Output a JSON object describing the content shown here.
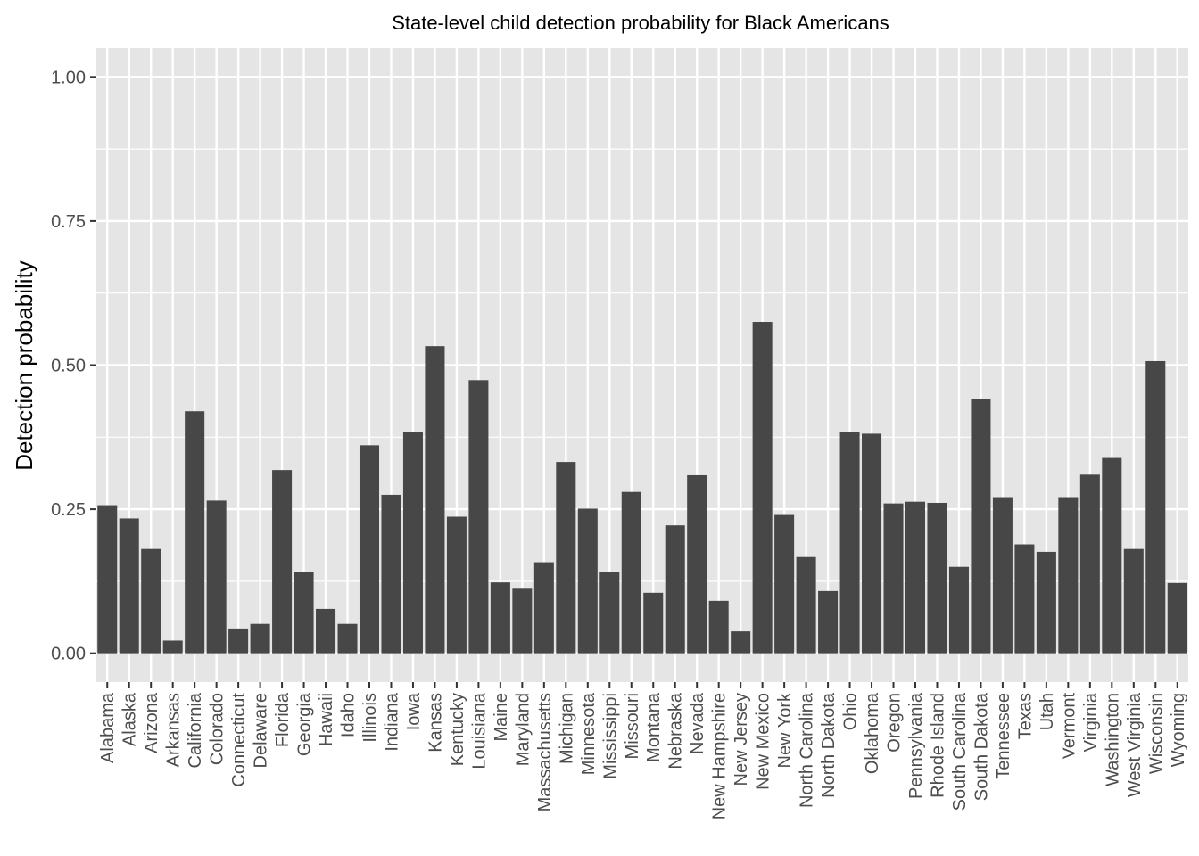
{
  "chart_data": {
    "type": "bar",
    "title": "State-level child detection probability for Black Americans",
    "xlabel": "",
    "ylabel": "Detection probability",
    "ylim": [
      -0.05,
      1.05
    ],
    "yticks": [
      0,
      0.25,
      0.5,
      0.75,
      1.0
    ],
    "ytick_labels": [
      "0.00",
      "0.25",
      "0.50",
      "0.75",
      "1.00"
    ],
    "grid": true,
    "legend": "none",
    "colors": {
      "panel": "#e5e5e5",
      "grid": "#ffffff",
      "bar": "#474747",
      "tick": "#4d4d4d",
      "text": "#000000"
    },
    "categories": [
      "Alabama",
      "Alaska",
      "Arizona",
      "Arkansas",
      "California",
      "Colorado",
      "Connecticut",
      "Delaware",
      "Florida",
      "Georgia",
      "Hawaii",
      "Idaho",
      "Illinois",
      "Indiana",
      "Iowa",
      "Kansas",
      "Kentucky",
      "Louisiana",
      "Maine",
      "Maryland",
      "Massachusetts",
      "Michigan",
      "Minnesota",
      "Mississippi",
      "Missouri",
      "Montana",
      "Nebraska",
      "Nevada",
      "New Hampshire",
      "New Jersey",
      "New Mexico",
      "New York",
      "North Carolina",
      "North Dakota",
      "Ohio",
      "Oklahoma",
      "Oregon",
      "Pennsylvania",
      "Rhode Island",
      "South Carolina",
      "South Dakota",
      "Tennessee",
      "Texas",
      "Utah",
      "Vermont",
      "Virginia",
      "Washington",
      "West Virginia",
      "Wisconsin",
      "Wyoming"
    ],
    "values": [
      0.257,
      0.234,
      0.181,
      0.022,
      0.42,
      0.265,
      0.043,
      0.051,
      0.318,
      0.141,
      0.077,
      0.051,
      0.361,
      0.275,
      0.384,
      0.533,
      0.237,
      0.474,
      0.123,
      0.112,
      0.158,
      0.332,
      0.251,
      0.141,
      0.28,
      0.105,
      0.222,
      0.309,
      0.091,
      0.038,
      0.575,
      0.24,
      0.167,
      0.108,
      0.384,
      0.381,
      0.26,
      0.263,
      0.261,
      0.15,
      0.441,
      0.271,
      0.189,
      0.176,
      0.271,
      0.31,
      0.339,
      0.181,
      0.507,
      0.122
    ]
  }
}
